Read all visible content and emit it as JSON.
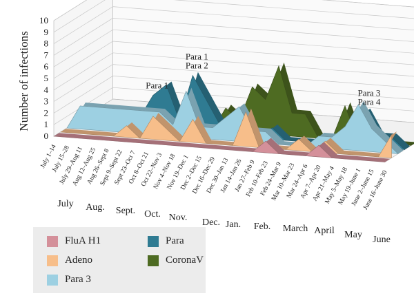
{
  "chart_data": {
    "type": "area",
    "ylabel": "Number of infections",
    "ylim": [
      0,
      10
    ],
    "yticks": [
      "0",
      "1",
      "2",
      "3",
      "4",
      "5",
      "6",
      "7",
      "8",
      "9",
      "10"
    ],
    "periods": [
      "July 1–14",
      "July 15–28",
      "July 29–Aug 11",
      "Aug 12–Aug 25",
      "Aug 26–Sept 8",
      "Sept 9–Sept 22",
      "Sept 23–Oct 7",
      "Oct 8–Oct 21",
      "Oct 22–Nov 3",
      "Nov 4–Nov 18",
      "Nov 19–Dec 1",
      "Dec 2–Dec 15",
      "Dec 16–Dec 29",
      "Dec 30–Jan 13",
      "Jan 14–Jan 26",
      "Jan 27–Feb 9",
      "Feb 10–Feb 23",
      "Feb 24–Mar 9",
      "Mar 10–Mar 23",
      "Mar 24–Apr 6",
      "Apr 7–Apr 20",
      "Apr 21–May 4",
      "May 5–May 18",
      "May 19–June 1",
      "June 2–June 15",
      "June 16–June 30"
    ],
    "months": [
      "July",
      "Aug.",
      "Sept.",
      "Oct.",
      "Nov.",
      "Dec.",
      "Jan.",
      "Feb.",
      "March",
      "April",
      "May",
      "June"
    ],
    "series": [
      {
        "name": "FluA H1",
        "color": "#d4909a",
        "values": [
          0,
          0,
          0,
          0,
          0,
          0,
          0,
          0,
          0,
          0,
          0,
          0,
          0,
          0,
          0,
          0,
          1,
          0,
          0,
          0,
          1,
          0,
          0,
          0,
          0,
          0
        ]
      },
      {
        "name": "Adeno",
        "color": "#f7be8a",
        "values": [
          0,
          0,
          0,
          0,
          0,
          1,
          0,
          2,
          1,
          0,
          2,
          0,
          0,
          0,
          3,
          0,
          0,
          0,
          1,
          0,
          1,
          0,
          0,
          0,
          0,
          2
        ]
      },
      {
        "name": "Para 3",
        "color": "#9dd0e2",
        "values": [
          0,
          2,
          2,
          2,
          2,
          2,
          2,
          2,
          1,
          4,
          1,
          1,
          2,
          3,
          1,
          1,
          0,
          0,
          0,
          1,
          1,
          2,
          4,
          2,
          1,
          0
        ]
      },
      {
        "name": "Para",
        "color": "#2f7b92",
        "values": [
          0,
          0,
          0,
          0,
          0,
          1,
          3,
          4,
          1,
          5,
          3,
          1,
          2,
          1,
          0,
          1,
          0,
          0,
          0,
          0,
          1,
          2,
          3,
          1,
          1,
          0
        ]
      },
      {
        "name": "CoronaV",
        "color": "#4e6b22",
        "values": [
          0,
          0,
          0,
          0,
          0,
          0,
          0,
          0,
          0,
          0,
          0,
          2,
          1,
          4,
          3,
          6,
          2,
          2,
          0,
          0,
          3,
          0,
          0,
          0,
          0,
          0
        ]
      }
    ],
    "annotations": [
      {
        "lines": [
          "Para 1"
        ],
        "series": "Para",
        "index": 6
      },
      {
        "lines": [
          "Para 1",
          "Para 2"
        ],
        "series": "Para",
        "index": 9
      },
      {
        "lines": [
          "Para 3",
          "Para 4"
        ],
        "series": "Para",
        "index": 22
      }
    ],
    "legend_position": "bottom-left",
    "grid": true
  }
}
